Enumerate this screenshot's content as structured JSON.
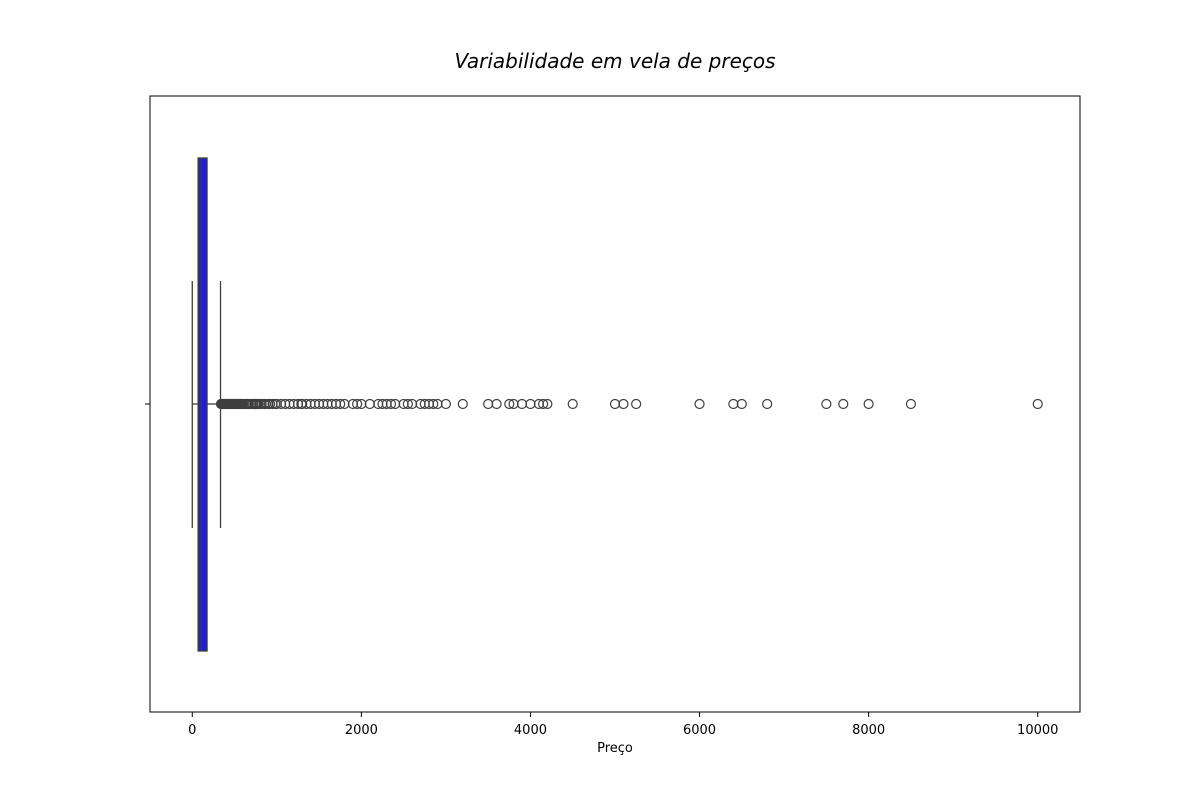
{
  "chart_data": {
    "type": "boxplot",
    "orientation": "horizontal",
    "title": "Variabilidade em vela de preços",
    "xlabel": "Preço",
    "ylabel": "",
    "xlim": [
      -500,
      10500
    ],
    "xticks": [
      0,
      2000,
      4000,
      6000,
      8000,
      10000
    ],
    "xtick_labels": [
      "0",
      "2000",
      "4000",
      "6000",
      "8000",
      "10000"
    ],
    "grid": false,
    "box": {
      "whisker_low": 0,
      "q1": 69,
      "median": 106,
      "q3": 175,
      "whisker_high": 334,
      "fill": "#1f1fcc",
      "line_color": "#3f3f3f"
    },
    "outliers": [
      340,
      350,
      360,
      370,
      380,
      390,
      400,
      410,
      420,
      430,
      440,
      450,
      460,
      470,
      480,
      490,
      500,
      510,
      520,
      530,
      540,
      550,
      560,
      570,
      580,
      590,
      600,
      620,
      640,
      650,
      660,
      680,
      700,
      720,
      740,
      750,
      760,
      780,
      800,
      820,
      850,
      870,
      900,
      920,
      950,
      980,
      1000,
      1050,
      1100,
      1150,
      1200,
      1250,
      1290,
      1300,
      1350,
      1400,
      1450,
      1500,
      1550,
      1600,
      1650,
      1700,
      1750,
      1800,
      1900,
      1950,
      2000,
      2100,
      2200,
      2250,
      2300,
      2350,
      2400,
      2500,
      2550,
      2600,
      2700,
      2750,
      2800,
      2850,
      2900,
      3000,
      3200,
      3500,
      3600,
      3750,
      3800,
      3900,
      4000,
      4100,
      4150,
      4200,
      4500,
      5000,
      5100,
      5250,
      6000,
      6400,
      6500,
      6800,
      7500,
      7700,
      8000,
      8500,
      10000
    ]
  }
}
